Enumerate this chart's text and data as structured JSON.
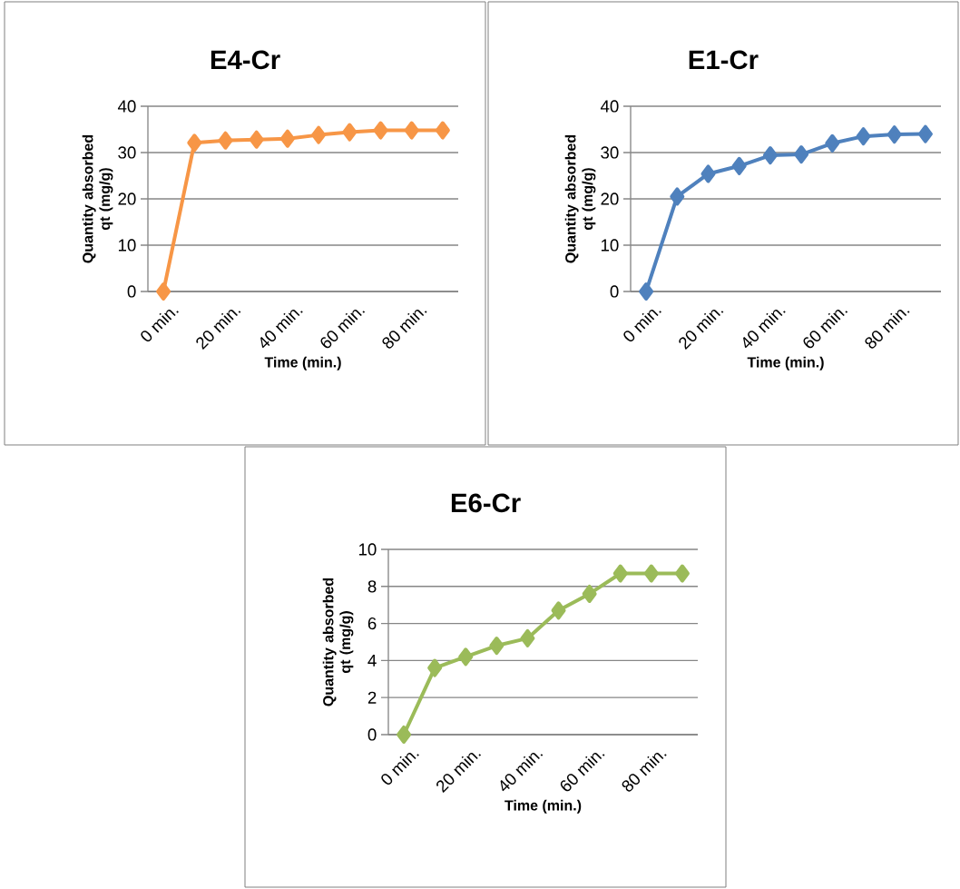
{
  "chart_data": [
    {
      "type": "line",
      "title": "E4-Cr",
      "xlabel": "Time (min.)",
      "ylabel": "Quantity absorbed qt (mg/g)",
      "categories": [
        "0 min.",
        null,
        "20 min.",
        null,
        "40 min.",
        null,
        "60 min.",
        null,
        "80 min.",
        null
      ],
      "series": [
        {
          "color": "#f79646",
          "values": [
            0,
            32.1,
            32.6,
            32.8,
            33.0,
            33.8,
            34.4,
            34.8,
            34.8,
            34.8
          ]
        }
      ],
      "ylim": [
        0,
        40
      ],
      "yticks": [
        0,
        10,
        20,
        30,
        40
      ],
      "grid": "y",
      "marker": "diamond"
    },
    {
      "type": "line",
      "title": "E1-Cr",
      "xlabel": "Time (min.)",
      "ylabel": "Quantity absorbed qt (mg/g)",
      "categories": [
        "0 min.",
        null,
        "20 min.",
        null,
        "40 min.",
        null,
        "60 min.",
        null,
        "80 min.",
        null
      ],
      "series": [
        {
          "color": "#4f81bd",
          "values": [
            0,
            20.5,
            25.4,
            27.1,
            29.4,
            29.6,
            32.0,
            33.5,
            33.9,
            34.0
          ]
        }
      ],
      "ylim": [
        0,
        40
      ],
      "yticks": [
        0,
        10,
        20,
        30,
        40
      ],
      "grid": "y",
      "marker": "diamond"
    },
    {
      "type": "line",
      "title": "E6-Cr",
      "xlabel": "Time (min.)",
      "ylabel": "Quantity absorbed qt (mg/g)",
      "categories": [
        "0 min.",
        null,
        "20 min.",
        null,
        "40 min.",
        null,
        "60 min.",
        null,
        "80 min.",
        null
      ],
      "series": [
        {
          "color": "#9bbb59",
          "values": [
            0,
            3.6,
            4.2,
            4.8,
            5.2,
            6.7,
            7.6,
            8.7,
            8.7,
            8.7
          ]
        }
      ],
      "ylim": [
        0,
        10
      ],
      "yticks": [
        0,
        2,
        4,
        6,
        8,
        10
      ],
      "grid": "y",
      "marker": "diamond"
    }
  ]
}
